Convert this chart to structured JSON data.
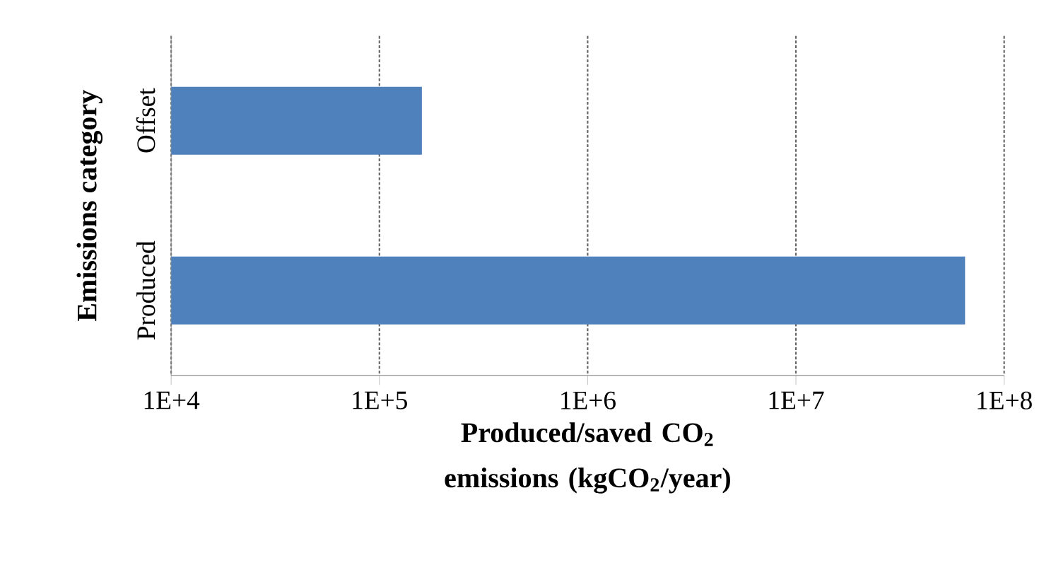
{
  "chart_data": {
    "type": "bar",
    "orientation": "horizontal",
    "log": "x",
    "categories": [
      "Offset",
      "Produced"
    ],
    "values": [
      160000,
      65000000
    ],
    "color": "#4f81bd",
    "xlim": [
      10000,
      100000000
    ],
    "xticks": [
      {
        "value": 10000,
        "label": "1E+4"
      },
      {
        "value": 100000,
        "label": "1E+5"
      },
      {
        "value": 1000000,
        "label": "1E+6"
      },
      {
        "value": 10000000,
        "label": "1E+7"
      },
      {
        "value": 100000000,
        "label": "1E+8"
      }
    ],
    "xlabel": "Produced/saved CO$_{2}$ emissions (kgCO$_{2}$/year)",
    "ylabel": "Emissions category",
    "grid": "x"
  }
}
